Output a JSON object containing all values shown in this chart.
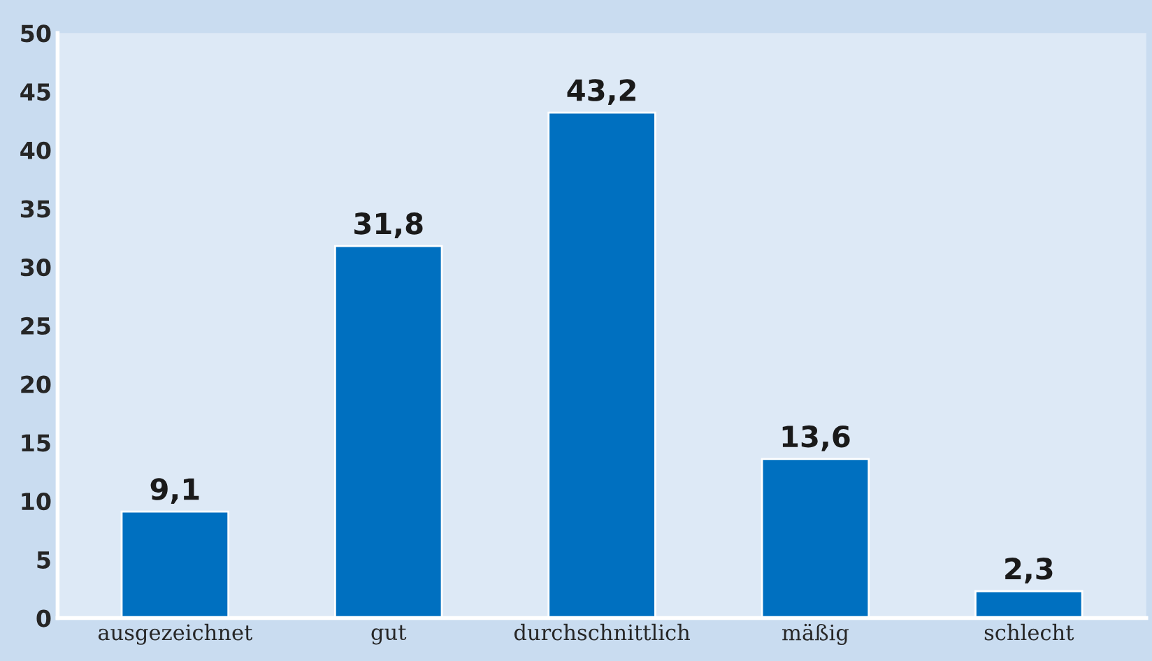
{
  "chart_data": {
    "type": "bar",
    "categories": [
      "ausgezeichnet",
      "gut",
      "durchschnittlich",
      "mäßig",
      "schlecht"
    ],
    "values": [
      9.1,
      31.8,
      43.2,
      13.6,
      2.3
    ],
    "value_labels": [
      "9,1",
      "31,8",
      "43,2",
      "13,6",
      "2,3"
    ],
    "color": "#0070c0",
    "ylim": [
      0,
      50
    ],
    "yticks": [
      0,
      5,
      10,
      15,
      20,
      25,
      30,
      35,
      40,
      45,
      50
    ],
    "grid": false,
    "legend": false
  }
}
